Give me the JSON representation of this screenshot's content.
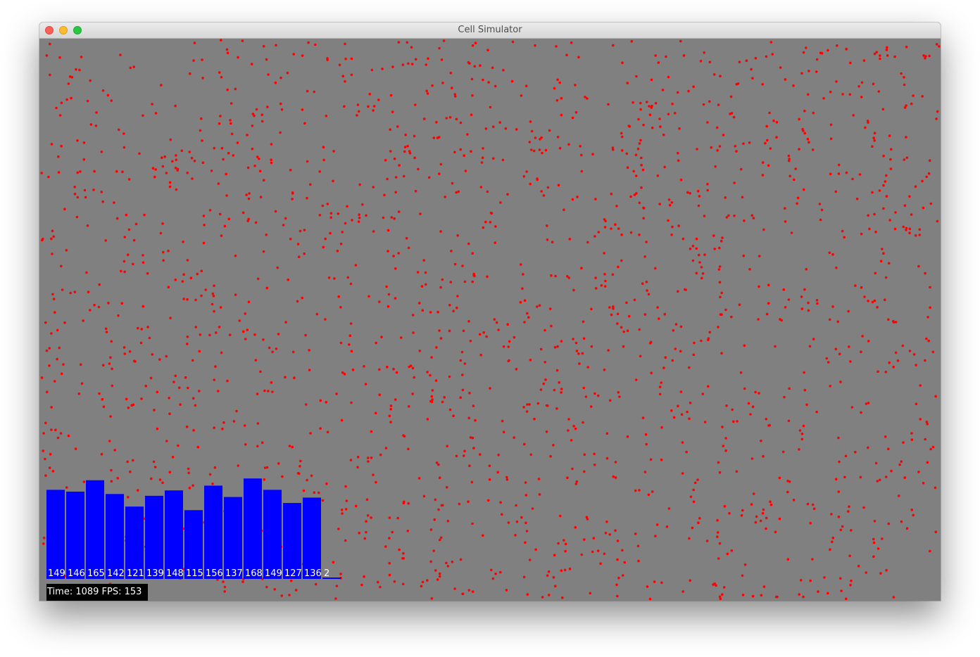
{
  "window": {
    "title": "Cell Simulator"
  },
  "colors": {
    "background": "#808080",
    "cell": "#ff0000",
    "bar": "#0000ff",
    "bar_text": "#ffffff"
  },
  "histogram": {
    "values": [
      149,
      146,
      165,
      142,
      121,
      139,
      148,
      115,
      156,
      137,
      168,
      149,
      127,
      136,
      2
    ]
  },
  "status": {
    "time": "1089",
    "fps": "153",
    "text": "Time: 1089 FPS: 153"
  },
  "chart_data": {
    "type": "bar",
    "values": [
      149,
      146,
      165,
      142,
      121,
      139,
      148,
      115,
      156,
      137,
      168,
      149,
      127,
      136,
      2
    ]
  }
}
